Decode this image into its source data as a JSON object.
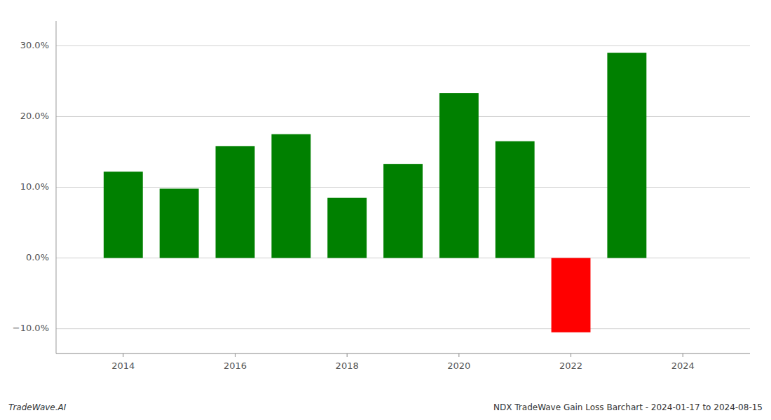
{
  "chart_data": {
    "type": "bar",
    "x": [
      2014,
      2015,
      2016,
      2017,
      2018,
      2019,
      2020,
      2021,
      2022,
      2023
    ],
    "values": [
      0.122,
      0.098,
      0.158,
      0.175,
      0.085,
      0.133,
      0.233,
      0.165,
      -0.105,
      0.29
    ],
    "colors": [
      "#008000",
      "#008000",
      "#008000",
      "#008000",
      "#008000",
      "#008000",
      "#008000",
      "#008000",
      "#ff0000",
      "#008000"
    ],
    "xlim": [
      2012.8,
      2025.2
    ],
    "xticks": [
      2014,
      2016,
      2018,
      2020,
      2022,
      2024
    ],
    "ylim": [
      -0.135,
      0.335
    ],
    "yticks": [
      {
        "value": -0.1,
        "label": "−10.0%"
      },
      {
        "value": 0.0,
        "label": "0.0%"
      },
      {
        "value": 0.1,
        "label": "10.0%"
      },
      {
        "value": 0.2,
        "label": "20.0%"
      },
      {
        "value": 0.3,
        "label": "30.0%"
      }
    ],
    "grid": true,
    "annotations": [
      "TradeWave.AI",
      "NDX TradeWave Gain Loss Barchart - 2024-01-17 to 2024-08-15"
    ]
  }
}
